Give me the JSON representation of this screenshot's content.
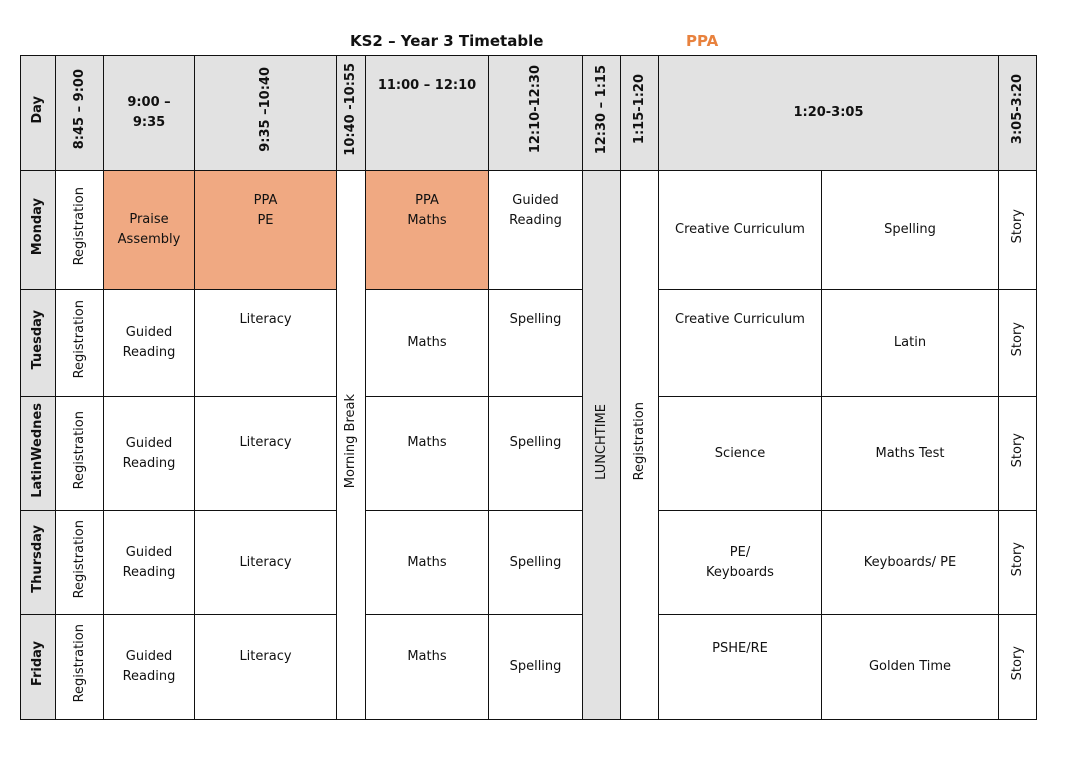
{
  "title": "KS2 – Year 3 Timetable",
  "legend": "PPA",
  "colors": {
    "ppa": "#f0a982",
    "header": "#e2e2e2",
    "legend": "#e8823e"
  },
  "headers": [
    "Day",
    "8:45 – 9:00",
    "9:00 – 9:35",
    "9:35 –10:40",
    "10:40 -10:55",
    "11:00 – 12:10",
    "12:10-12:30",
    "12:30 – 1:15",
    "1:15-1:20",
    "1:20-3:05",
    "3:05-3:20"
  ],
  "breaks": {
    "morning": "Morning Break",
    "lunch": "LUNCHTIME",
    "afternoon_reg": "Registration"
  },
  "rows": [
    {
      "day": "Monday",
      "reg": "Registration",
      "c1": "Praise Assembly",
      "c2": "PPA\nPE",
      "c3": "PPA\nMaths",
      "c4": "Guided Reading",
      "c5": "Creative Curriculum",
      "c6": "Spelling",
      "c7": "Story"
    },
    {
      "day": "Tuesday",
      "reg": "Registration",
      "c1": "Guided Reading",
      "c2": "Literacy",
      "c3": "Maths",
      "c4": "Spelling",
      "c5": "Creative Curriculum",
      "c6": "Latin",
      "c7": "Story"
    },
    {
      "day": "LatinWednes",
      "reg": "Registration",
      "c1": "Guided Reading",
      "c2": "Literacy",
      "c3": "Maths",
      "c4": "Spelling",
      "c5": "Science",
      "c6": "Maths Test",
      "c7": "Story"
    },
    {
      "day": "Thursday",
      "reg": "Registration",
      "c1": "Guided Reading",
      "c2": "Literacy",
      "c3": "Maths",
      "c4": "Spelling",
      "c5": "PE/ Keyboards",
      "c6": "Keyboards/ PE",
      "c7": "Story"
    },
    {
      "day": "Friday",
      "reg": "Registration",
      "c1": "Guided Reading",
      "c2": "Literacy",
      "c3": "Maths",
      "c4": "Spelling",
      "c5": "PSHE/RE",
      "c6": "Golden Time",
      "c7": "Story"
    }
  ]
}
